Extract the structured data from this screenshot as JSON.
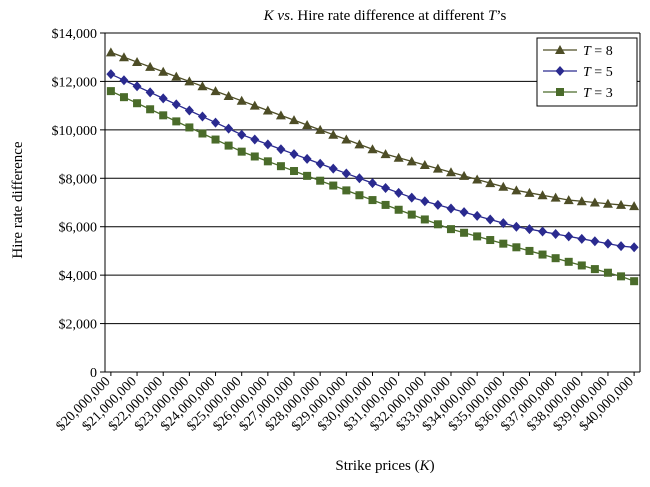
{
  "chart_data": {
    "type": "line",
    "title": {
      "k": "K",
      "vs": "vs",
      "middle": ". Hire rate difference at different ",
      "t": "T",
      "end": "’s"
    },
    "xlabel": {
      "prefix": "Strike prices (",
      "k": "K",
      "suffix": ")"
    },
    "ylabel": "Hire rate difference",
    "ylim": [
      0,
      14000
    ],
    "yticks": [
      "0",
      "$2,000",
      "$4,000",
      "$6,000",
      "$8,000",
      "$10,000",
      "$12,000",
      "$14,000"
    ],
    "xticks": [
      "$20,000,000",
      "$21,000,000",
      "$22,000,000",
      "$23,000,000",
      "$24,000,000",
      "$25,000,000",
      "$26,000,000",
      "$27,000,000",
      "$28,000,000",
      "$29,000,000",
      "$30,000,000",
      "$31,000,000",
      "$32,000,000",
      "$33,000,000",
      "$34,000,000",
      "$35,000,000",
      "$36,000,000",
      "$37,000,000",
      "$38,000,000",
      "$39,000,000",
      "$40,000,000"
    ],
    "x": [
      20000000,
      20500000,
      21000000,
      21500000,
      22000000,
      22500000,
      23000000,
      23500000,
      24000000,
      24500000,
      25000000,
      25500000,
      26000000,
      26500000,
      27000000,
      27500000,
      28000000,
      28500000,
      29000000,
      29500000,
      30000000,
      30500000,
      31000000,
      31500000,
      32000000,
      32500000,
      33000000,
      33500000,
      34000000,
      34500000,
      35000000,
      35500000,
      36000000,
      36500000,
      37000000,
      37500000,
      38000000,
      38500000,
      39000000,
      39500000,
      40000000
    ],
    "grid": true,
    "legend_position": "top-right",
    "series": [
      {
        "name_var": "T",
        "name_rest": " = 8",
        "color": "#4d4d26",
        "marker": "triangle",
        "values": [
          13200,
          13000,
          12800,
          12600,
          12400,
          12200,
          12000,
          11800,
          11600,
          11400,
          11200,
          11000,
          10800,
          10600,
          10400,
          10200,
          10000,
          9800,
          9600,
          9400,
          9200,
          9000,
          8850,
          8700,
          8550,
          8400,
          8250,
          8100,
          7950,
          7800,
          7650,
          7500,
          7400,
          7300,
          7200,
          7100,
          7050,
          7000,
          6950,
          6900,
          6850
        ]
      },
      {
        "name_var": "T",
        "name_rest": " = 5",
        "color": "#2a2a8f",
        "marker": "diamond",
        "values": [
          12300,
          12050,
          11800,
          11550,
          11300,
          11050,
          10800,
          10550,
          10300,
          10050,
          9800,
          9600,
          9400,
          9200,
          9000,
          8800,
          8600,
          8400,
          8200,
          8000,
          7800,
          7600,
          7400,
          7200,
          7050,
          6900,
          6750,
          6600,
          6450,
          6300,
          6150,
          6000,
          5900,
          5800,
          5700,
          5600,
          5500,
          5400,
          5300,
          5200,
          5150
        ]
      },
      {
        "name_var": "T",
        "name_rest": " = 3",
        "color": "#4a6b2a",
        "marker": "square",
        "values": [
          11600,
          11350,
          11100,
          10850,
          10600,
          10350,
          10100,
          9850,
          9600,
          9350,
          9100,
          8900,
          8700,
          8500,
          8300,
          8100,
          7900,
          7700,
          7500,
          7300,
          7100,
          6900,
          6700,
          6500,
          6300,
          6100,
          5900,
          5750,
          5600,
          5450,
          5300,
          5150,
          5000,
          4850,
          4700,
          4550,
          4400,
          4250,
          4100,
          3950,
          3750
        ]
      }
    ]
  }
}
